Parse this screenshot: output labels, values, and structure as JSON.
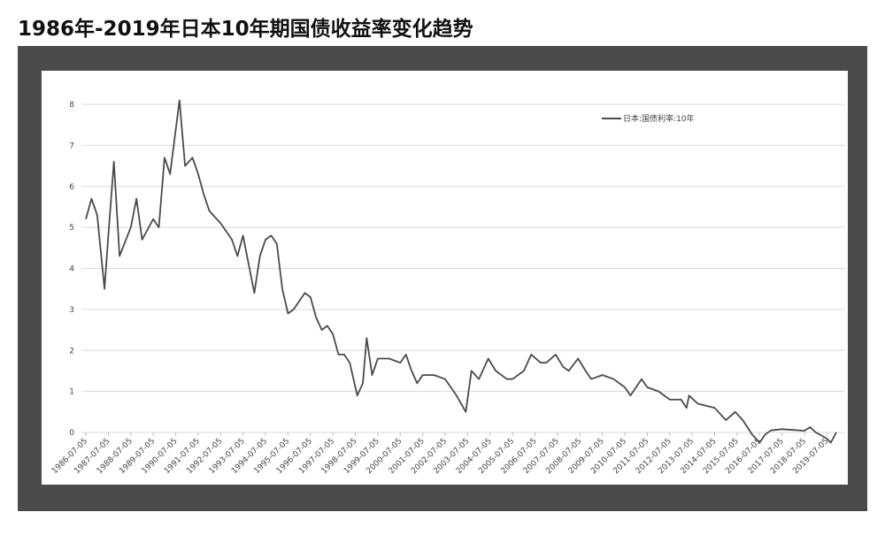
{
  "chart_data": {
    "type": "line",
    "title": "1986年-2019年日本10年期国债收益率变化趋势",
    "x": [
      "1986-07-05",
      "1986-10-05",
      "1987-01-05",
      "1987-05-05",
      "1987-07-05",
      "1987-10-05",
      "1988-01-05",
      "1988-07-05",
      "1988-10-05",
      "1989-01-05",
      "1989-07-05",
      "1989-10-05",
      "1990-01-05",
      "1990-04-05",
      "1990-09-05",
      "1990-12-05",
      "1991-04-05",
      "1991-07-05",
      "1991-10-05",
      "1992-01-05",
      "1992-07-05",
      "1993-01-05",
      "1993-04-05",
      "1993-07-05",
      "1993-10-05",
      "1994-01-05",
      "1994-04-05",
      "1994-07-05",
      "1994-10-05",
      "1995-01-05",
      "1995-04-05",
      "1995-07-05",
      "1995-10-05",
      "1996-01-05",
      "1996-04-05",
      "1996-07-05",
      "1996-10-05",
      "1997-01-05",
      "1997-04-05",
      "1997-07-05",
      "1997-10-05",
      "1998-01-05",
      "1998-04-05",
      "1998-08-05",
      "1998-11-05",
      "1999-01-05",
      "1999-04-05",
      "1999-07-05",
      "2000-01-05",
      "2000-07-05",
      "2000-10-05",
      "2001-01-05",
      "2001-04-05",
      "2001-07-05",
      "2002-01-05",
      "2002-07-05",
      "2003-01-05",
      "2003-06-05",
      "2003-09-05",
      "2004-01-05",
      "2004-06-05",
      "2004-10-05",
      "2005-04-05",
      "2005-07-05",
      "2006-01-05",
      "2006-05-05",
      "2006-10-05",
      "2007-01-05",
      "2007-06-05",
      "2007-10-05",
      "2008-01-05",
      "2008-06-05",
      "2008-10-05",
      "2009-01-05",
      "2009-07-05",
      "2010-01-05",
      "2010-07-05",
      "2010-10-05",
      "2011-04-05",
      "2011-07-05",
      "2012-01-05",
      "2012-07-05",
      "2013-01-05",
      "2013-04-05",
      "2013-05-15",
      "2013-10-05",
      "2014-07-05",
      "2015-01-05",
      "2015-06-05",
      "2015-10-05",
      "2016-03-05",
      "2016-07-05",
      "2016-10-05",
      "2017-01-05",
      "2017-07-05",
      "2018-01-05",
      "2018-07-05",
      "2018-10-05",
      "2019-01-05",
      "2019-07-05",
      "2019-09-05",
      "2019-12-05"
    ],
    "series": [
      {
        "name": "日本:国债利率:10年",
        "color": "#4a4a4a",
        "values": [
          5.2,
          5.7,
          5.3,
          3.5,
          4.8,
          6.6,
          4.3,
          5.0,
          5.7,
          4.7,
          5.2,
          5.0,
          6.7,
          6.3,
          8.1,
          6.5,
          6.7,
          6.3,
          5.8,
          5.4,
          5.1,
          4.7,
          4.3,
          4.8,
          4.1,
          3.4,
          4.3,
          4.7,
          4.8,
          4.6,
          3.5,
          2.9,
          3.0,
          3.2,
          3.4,
          3.3,
          2.8,
          2.5,
          2.6,
          2.4,
          1.9,
          1.9,
          1.7,
          0.9,
          1.2,
          2.3,
          1.4,
          1.8,
          1.8,
          1.7,
          1.9,
          1.5,
          1.2,
          1.4,
          1.4,
          1.3,
          0.9,
          0.5,
          1.5,
          1.3,
          1.8,
          1.5,
          1.3,
          1.3,
          1.5,
          1.9,
          1.7,
          1.7,
          1.9,
          1.6,
          1.5,
          1.8,
          1.5,
          1.3,
          1.4,
          1.3,
          1.1,
          0.9,
          1.3,
          1.1,
          1.0,
          0.8,
          0.8,
          0.6,
          0.9,
          0.7,
          0.6,
          0.3,
          0.5,
          0.3,
          -0.05,
          -0.25,
          -0.05,
          0.05,
          0.08,
          0.06,
          0.04,
          0.13,
          0.0,
          -0.15,
          -0.25,
          0.0
        ]
      }
    ],
    "xlim": [
      "1986-07-05",
      "2019-12-05"
    ],
    "xticks": [
      "1986-07-05",
      "1987-07-05",
      "1988-07-05",
      "1989-07-05",
      "1990-07-05",
      "1991-07-05",
      "1992-07-05",
      "1993-07-05",
      "1994-07-05",
      "1995-07-05",
      "1996-07-05",
      "1997-07-05",
      "1998-07-05",
      "1999-07-05",
      "2000-07-05",
      "2001-07-05",
      "2002-07-05",
      "2003-07-05",
      "2004-07-05",
      "2005-07-05",
      "2006-07-05",
      "2007-07-05",
      "2008-07-05",
      "2009-07-05",
      "2010-07-05",
      "2011-07-05",
      "2012-07-05",
      "2013-07-05",
      "2014-07-05",
      "2015-07-05",
      "2016-07-05",
      "2017-07-05",
      "2018-07-05",
      "2019-07-05"
    ],
    "ylim": [
      0,
      8
    ],
    "yticks": [
      0,
      1,
      2,
      3,
      4,
      5,
      6,
      7,
      8
    ],
    "grid": true,
    "legend": "top-right"
  }
}
